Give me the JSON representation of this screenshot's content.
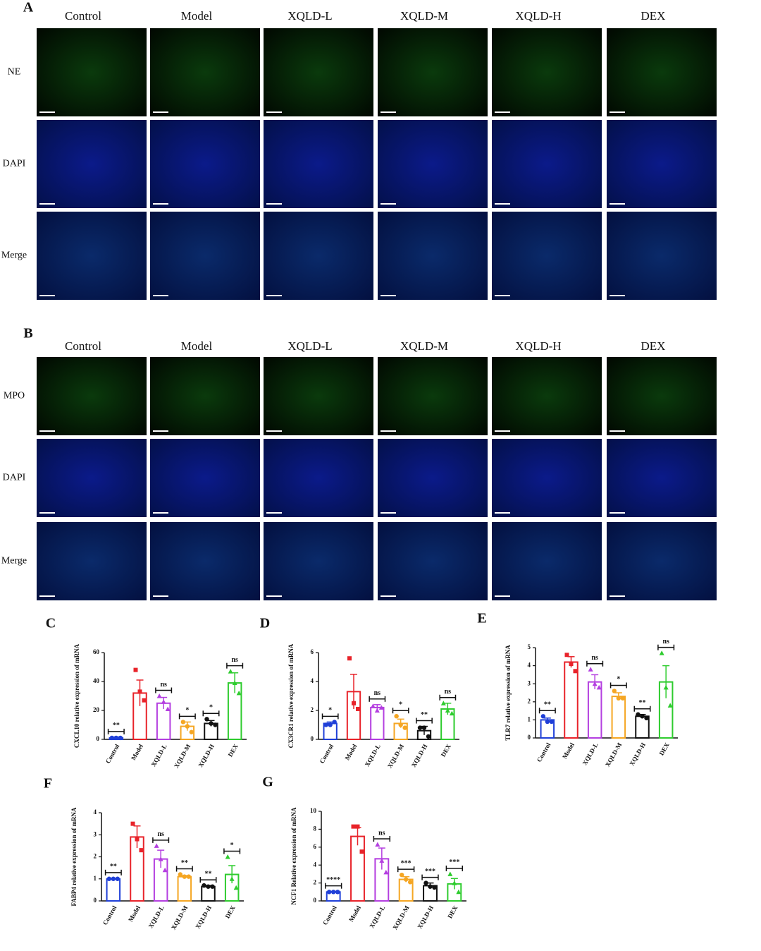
{
  "panel_a": {
    "label": "A",
    "columns": [
      "Control",
      "Model",
      "XQLD-L",
      "XQLD-M",
      "XQLD-H",
      "DEX"
    ],
    "rows": [
      "NE",
      "DAPI",
      "Merge"
    ]
  },
  "panel_b": {
    "label": "B",
    "columns": [
      "Control",
      "Model",
      "XQLD-L",
      "XQLD-M",
      "XQLD-H",
      "DEX"
    ],
    "rows": [
      "MPO",
      "DAPI",
      "Merge"
    ]
  },
  "chart_data": [
    {
      "type": "bar",
      "label": "C",
      "ylabel": "CXCL10 relative expression of mRNA",
      "categories": [
        "Control",
        "Model",
        "XQLD-L",
        "XQLD-M",
        "XQLD-H",
        "DEX"
      ],
      "colors": [
        "#1f3fd8",
        "#e8232a",
        "#b43fe0",
        "#f5a623",
        "#111111",
        "#2ecc2e"
      ],
      "markers": [
        "circle",
        "square",
        "triangle",
        "circle",
        "circle",
        "triangle"
      ],
      "values": [
        1,
        32,
        25,
        9,
        11,
        39
      ],
      "errors": [
        0.5,
        9,
        4,
        3,
        2,
        7
      ],
      "points": [
        [
          1,
          1,
          1
        ],
        [
          48,
          33,
          27
        ],
        [
          30,
          26,
          21
        ],
        [
          12,
          9,
          5
        ],
        [
          14,
          11,
          10
        ],
        [
          47,
          39,
          32
        ]
      ],
      "annotations": [
        "**",
        null,
        "ns",
        "*",
        "*",
        "ns"
      ],
      "ylim": [
        0,
        60
      ],
      "yticks": [
        0,
        20,
        40,
        60
      ]
    },
    {
      "type": "bar",
      "label": "D",
      "ylabel": "CX3CR1 relative expression of mRNA",
      "categories": [
        "Control",
        "Model",
        "XQLD-L",
        "XQLD-M",
        "XQLD-H",
        "DEX"
      ],
      "colors": [
        "#1f3fd8",
        "#e8232a",
        "#b43fe0",
        "#f5a623",
        "#111111",
        "#2ecc2e"
      ],
      "markers": [
        "circle",
        "square",
        "triangle",
        "circle",
        "circle",
        "triangle"
      ],
      "values": [
        1.1,
        3.3,
        2.2,
        1.1,
        0.6,
        2.1
      ],
      "errors": [
        0.1,
        1.2,
        0.2,
        0.3,
        0.3,
        0.4
      ],
      "points": [
        [
          1,
          1,
          1.2
        ],
        [
          5.6,
          2.5,
          2.1
        ],
        [
          2.3,
          2.0,
          2.2
        ],
        [
          1.6,
          1.0,
          0.8
        ],
        [
          0.8,
          0.8,
          0.2
        ],
        [
          2.5,
          2.0,
          1.8
        ]
      ],
      "annotations": [
        "*",
        null,
        "ns",
        "*",
        "**",
        "ns"
      ],
      "ylim": [
        0,
        6
      ],
      "yticks": [
        0,
        2,
        4,
        6
      ]
    },
    {
      "type": "bar",
      "label": "E",
      "ylabel": "TLR7 relative expression of mRNA",
      "categories": [
        "Control",
        "Model",
        "XQLD-L",
        "XQLD-M",
        "XQLD-H",
        "DEX"
      ],
      "colors": [
        "#1f3fd8",
        "#e8232a",
        "#b43fe0",
        "#f5a623",
        "#111111",
        "#2ecc2e"
      ],
      "markers": [
        "circle",
        "square",
        "triangle",
        "circle",
        "circle",
        "triangle"
      ],
      "values": [
        1,
        4.2,
        3.1,
        2.3,
        1.2,
        3.1
      ],
      "errors": [
        0.1,
        0.3,
        0.4,
        0.2,
        0.1,
        0.9
      ],
      "points": [
        [
          1.2,
          0.9,
          0.9
        ],
        [
          4.6,
          4.1,
          3.7
        ],
        [
          3.8,
          3.0,
          2.8
        ],
        [
          2.6,
          2.2,
          2.2
        ],
        [
          1.3,
          1.2,
          1.1
        ],
        [
          4.7,
          2.8,
          1.8
        ]
      ],
      "annotations": [
        "**",
        null,
        "ns",
        "*",
        "**",
        "ns"
      ],
      "ylim": [
        0,
        5
      ],
      "yticks": [
        0,
        1,
        2,
        3,
        4,
        5
      ]
    },
    {
      "type": "bar",
      "label": "F",
      "ylabel": "FABP4 relative expression of mRNA",
      "categories": [
        "Control",
        "Model",
        "XQLD-L",
        "XQLD-M",
        "XQLD-H",
        "DEX"
      ],
      "colors": [
        "#1f3fd8",
        "#e8232a",
        "#b43fe0",
        "#f5a623",
        "#111111",
        "#2ecc2e"
      ],
      "markers": [
        "circle",
        "square",
        "triangle",
        "circle",
        "circle",
        "triangle"
      ],
      "values": [
        1.0,
        2.9,
        1.9,
        1.1,
        0.65,
        1.2
      ],
      "errors": [
        0.03,
        0.5,
        0.4,
        0.05,
        0.05,
        0.4
      ],
      "points": [
        [
          1,
          1,
          1
        ],
        [
          3.5,
          2.8,
          2.3
        ],
        [
          2.5,
          1.9,
          1.4
        ],
        [
          1.2,
          1.1,
          1.1
        ],
        [
          0.7,
          0.65,
          0.65
        ],
        [
          2.0,
          1.0,
          0.6
        ]
      ],
      "annotations": [
        "**",
        null,
        "ns",
        "**",
        "**",
        "*"
      ],
      "ylim": [
        0,
        4
      ],
      "yticks": [
        0,
        1,
        2,
        3,
        4
      ]
    },
    {
      "type": "bar",
      "label": "G",
      "ylabel": "NCF1 Relative expression of mRNA",
      "categories": [
        "Control",
        "Model",
        "XQLD-L",
        "XQLD-M",
        "XQLD-H",
        "DEX"
      ],
      "colors": [
        "#1f3fd8",
        "#e8232a",
        "#b43fe0",
        "#f5a623",
        "#111111",
        "#2ecc2e"
      ],
      "markers": [
        "circle",
        "square",
        "triangle",
        "circle",
        "circle",
        "triangle"
      ],
      "values": [
        1,
        7.2,
        4.7,
        2.4,
        1.7,
        1.9
      ],
      "errors": [
        0.05,
        1,
        1.2,
        0.3,
        0.3,
        0.6
      ],
      "points": [
        [
          1,
          1,
          1
        ],
        [
          8.3,
          8.3,
          5.5
        ],
        [
          6.3,
          4.5,
          3.2
        ],
        [
          2.9,
          2.4,
          2.1
        ],
        [
          2,
          1.6,
          1.5
        ],
        [
          3,
          2,
          1
        ]
      ],
      "annotations": [
        "****",
        null,
        "ns",
        "***",
        "***",
        "***"
      ],
      "ylim": [
        0,
        10
      ],
      "yticks": [
        0,
        2,
        4,
        6,
        8,
        10
      ]
    }
  ]
}
